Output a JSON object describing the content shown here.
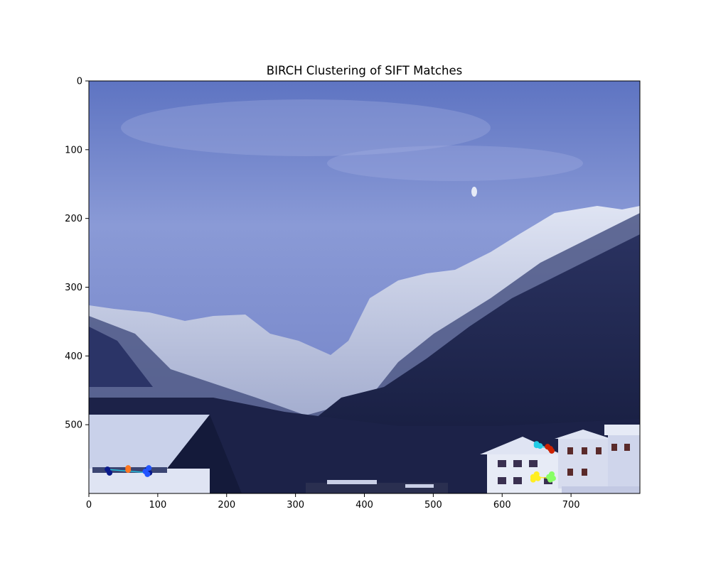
{
  "chart_data": {
    "type": "scatter",
    "title": "BIRCH Clustering of SIFT Matches",
    "xlabel": "",
    "ylabel": "",
    "xlim": [
      0,
      800
    ],
    "ylim": [
      600,
      0
    ],
    "y_inverted": true,
    "grid": false,
    "x_ticks": [
      0,
      100,
      200,
      300,
      400,
      500,
      600,
      700
    ],
    "y_ticks": [
      0,
      100,
      200,
      300,
      400,
      500
    ],
    "x_tick_labels": [
      "0",
      "100",
      "200",
      "300",
      "400",
      "500",
      "600",
      "700"
    ],
    "y_tick_labels": [
      "0",
      "100",
      "200",
      "300",
      "400",
      "500"
    ],
    "background": "photograph: snowy mountain valley at dusk with chalets in foreground",
    "clusters": [
      {
        "color": "#0a1a8c",
        "points": [
          [
            27,
            565
          ],
          [
            30,
            570
          ],
          [
            85,
            565
          ],
          [
            88,
            570
          ]
        ]
      },
      {
        "color": "#2255ff",
        "points": [
          [
            82,
            568
          ],
          [
            87,
            563
          ],
          [
            85,
            572
          ]
        ]
      },
      {
        "color": "#ff7722",
        "points": [
          [
            57,
            563
          ],
          [
            57,
            566
          ]
        ]
      },
      {
        "color": "#22cce6",
        "points": [
          [
            650,
            530
          ],
          [
            655,
            531
          ],
          [
            650,
            528
          ]
        ]
      },
      {
        "color": "#cc2200",
        "points": [
          [
            670,
            535
          ],
          [
            666,
            532
          ],
          [
            672,
            538
          ]
        ]
      },
      {
        "color": "#ffee22",
        "points": [
          [
            645,
            576
          ],
          [
            650,
            572
          ],
          [
            645,
            580
          ],
          [
            652,
            578
          ]
        ]
      },
      {
        "color": "#88ff66",
        "points": [
          [
            668,
            576
          ],
          [
            672,
            572
          ],
          [
            670,
            580
          ],
          [
            674,
            578
          ]
        ]
      }
    ],
    "match_lines": [
      {
        "color": "#22cce6",
        "from": [
          27,
          565
        ],
        "to": [
          88,
          570
        ]
      },
      {
        "color": "#ffee22",
        "from": [
          645,
          576
        ],
        "to": [
          674,
          578
        ]
      },
      {
        "color": "#22cce6",
        "from": [
          650,
          530
        ],
        "to": [
          670,
          535
        ]
      }
    ]
  }
}
